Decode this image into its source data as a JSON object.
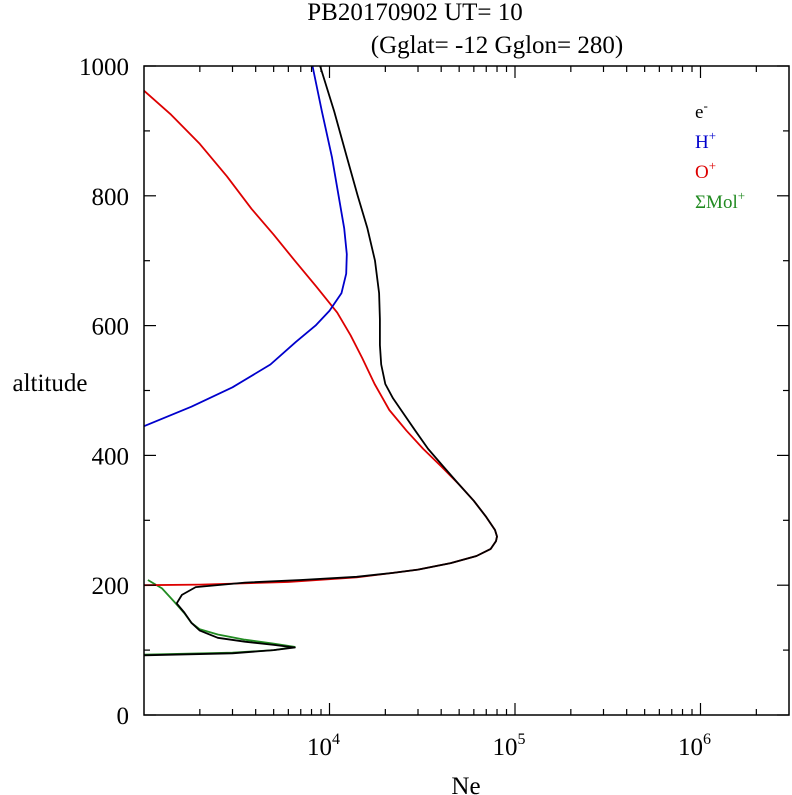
{
  "chart_data": {
    "type": "line",
    "title": "PB20170902   UT=  10",
    "subtitle": "(Gglat= -12   Gglon=  280)",
    "xlabel": "Ne",
    "ylabel": "altitude",
    "xscale": "log",
    "xlim": [
      1000,
      3000000
    ],
    "ylim": [
      0,
      1000
    ],
    "xticks": [
      {
        "value": 10000,
        "base": "10",
        "exp": "4"
      },
      {
        "value": 100000,
        "base": "10",
        "exp": "5"
      },
      {
        "value": 1000000,
        "base": "10",
        "exp": "6"
      }
    ],
    "yticks": [
      {
        "value": 0,
        "label": "0"
      },
      {
        "value": 200,
        "label": "200"
      },
      {
        "value": 400,
        "label": "400"
      },
      {
        "value": 600,
        "label": "600"
      },
      {
        "value": 800,
        "label": "800"
      },
      {
        "value": 1000,
        "label": "1000"
      }
    ],
    "legend": {
      "position": "top-right",
      "entries": [
        {
          "name": "e",
          "sup": "-",
          "color": "#000000"
        },
        {
          "name": "H",
          "sup": "+",
          "color": "#0000cc"
        },
        {
          "name": "O",
          "sup": "+",
          "color": "#dd0000"
        },
        {
          "name": "ΣMol",
          "sup": "+",
          "color": "#228b22"
        }
      ]
    },
    "series": [
      {
        "name": "ΣMol+",
        "color": "#228b22",
        "points": [
          [
            1000,
            93
          ],
          [
            3000,
            96
          ],
          [
            5000,
            100
          ],
          [
            6500,
            105
          ],
          [
            5000,
            110
          ],
          [
            3500,
            116
          ],
          [
            2500,
            124
          ],
          [
            2000,
            132
          ],
          [
            1800,
            142
          ],
          [
            1650,
            157
          ],
          [
            1450,
            175
          ],
          [
            1250,
            195
          ],
          [
            1050,
            208
          ]
        ]
      },
      {
        "name": "O+",
        "color": "#dd0000",
        "points": [
          [
            1000,
            200
          ],
          [
            2000,
            201
          ],
          [
            6000,
            205
          ],
          [
            14000,
            212
          ],
          [
            22000,
            219
          ],
          [
            30000,
            224
          ],
          [
            45000,
            234
          ],
          [
            62000,
            245
          ],
          [
            74000,
            256
          ],
          [
            79000,
            268
          ],
          [
            80000,
            275
          ],
          [
            78000,
            285
          ],
          [
            70000,
            305
          ],
          [
            60000,
            330
          ],
          [
            50000,
            355
          ],
          [
            40000,
            383
          ],
          [
            32000,
            410
          ],
          [
            26000,
            438
          ],
          [
            21000,
            470
          ],
          [
            17500,
            510
          ],
          [
            15000,
            550
          ],
          [
            13000,
            585
          ],
          [
            11000,
            620
          ],
          [
            8500,
            660
          ],
          [
            6500,
            700
          ],
          [
            5000,
            740
          ],
          [
            3800,
            780
          ],
          [
            2800,
            830
          ],
          [
            2000,
            880
          ],
          [
            1400,
            925
          ],
          [
            1000,
            962
          ]
        ]
      },
      {
        "name": "H+",
        "color": "#0000cc",
        "points": [
          [
            1000,
            445
          ],
          [
            1800,
            475
          ],
          [
            3000,
            505
          ],
          [
            4800,
            540
          ],
          [
            6600,
            575
          ],
          [
            8400,
            600
          ],
          [
            10000,
            623
          ],
          [
            11600,
            650
          ],
          [
            12300,
            680
          ],
          [
            12400,
            710
          ],
          [
            12000,
            750
          ],
          [
            11200,
            800
          ],
          [
            10300,
            860
          ],
          [
            9100,
            930
          ],
          [
            8100,
            1000
          ]
        ]
      },
      {
        "name": "e-",
        "color": "#000000",
        "points": [
          [
            1000,
            92
          ],
          [
            3000,
            95
          ],
          [
            5000,
            100
          ],
          [
            6500,
            104
          ],
          [
            5000,
            108
          ],
          [
            3500,
            113
          ],
          [
            2500,
            119
          ],
          [
            2000,
            130
          ],
          [
            1800,
            142
          ],
          [
            1650,
            158
          ],
          [
            1500,
            172
          ],
          [
            1600,
            185
          ],
          [
            1900,
            197
          ],
          [
            3500,
            204
          ],
          [
            7000,
            208
          ],
          [
            14000,
            213
          ],
          [
            22000,
            219
          ],
          [
            30000,
            224
          ],
          [
            45000,
            234
          ],
          [
            62000,
            245
          ],
          [
            74000,
            256
          ],
          [
            79000,
            268
          ],
          [
            80000,
            275
          ],
          [
            78000,
            285
          ],
          [
            70000,
            305
          ],
          [
            60000,
            330
          ],
          [
            50000,
            355
          ],
          [
            41000,
            383
          ],
          [
            34000,
            410
          ],
          [
            29000,
            438
          ],
          [
            25000,
            465
          ],
          [
            22000,
            488
          ],
          [
            20000,
            510
          ],
          [
            19000,
            540
          ],
          [
            18700,
            570
          ],
          [
            18700,
            610
          ],
          [
            18500,
            650
          ],
          [
            17600,
            700
          ],
          [
            16000,
            750
          ],
          [
            14200,
            800
          ],
          [
            12400,
            860
          ],
          [
            10600,
            930
          ],
          [
            8900,
            1000
          ]
        ]
      }
    ]
  }
}
